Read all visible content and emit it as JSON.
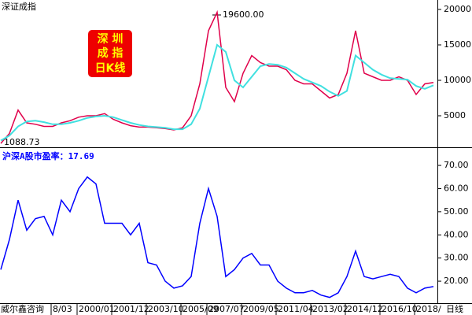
{
  "chart_data": [
    {
      "type": "line",
      "title": "深证成指",
      "annotations": [
        "19600.00",
        "1088.73"
      ],
      "badge": [
        "深 圳",
        "成 指",
        "日K线"
      ],
      "ylim": [
        556,
        21333
      ],
      "yticks": [
        5000,
        10000,
        15000,
        20000
      ],
      "series": [
        {
          "color": "#e0004a",
          "values": [
            1100,
            2500,
            5800,
            4000,
            3800,
            3500,
            3500,
            4000,
            4300,
            4800,
            5000,
            5000,
            5300,
            4500,
            4000,
            3600,
            3400,
            3400,
            3300,
            3200,
            3000,
            3300,
            5000,
            9500,
            17000,
            19600,
            9000,
            7000,
            11000,
            13500,
            12500,
            12000,
            12000,
            11500,
            10000,
            9500,
            9500,
            8500,
            7500,
            8000,
            11000,
            17000,
            11000,
            10500,
            10000,
            10000,
            10500,
            10000,
            8000,
            9500,
            9700
          ]
        },
        {
          "color": "#40e0e0",
          "values": [
            1500,
            2200,
            3500,
            4200,
            4300,
            4100,
            3800,
            3800,
            4000,
            4300,
            4700,
            4900,
            5000,
            4800,
            4400,
            4000,
            3700,
            3500,
            3400,
            3300,
            3100,
            3100,
            3800,
            6000,
            10500,
            15000,
            14000,
            10000,
            9000,
            10500,
            12000,
            12300,
            12200,
            11800,
            11000,
            10200,
            9700,
            9200,
            8400,
            7800,
            8500,
            13500,
            12500,
            11500,
            10800,
            10300,
            10200,
            10100,
            9200,
            8800,
            9300
          ]
        }
      ]
    },
    {
      "type": "line",
      "title": "沪深A股市盈率：17.69",
      "ylim": [
        10.5,
        77.5
      ],
      "yticks": [
        {
          "value": 20,
          "label": "20.00"
        },
        {
          "value": 30,
          "label": "30.00"
        },
        {
          "value": 40,
          "label": "40.00"
        },
        {
          "value": 50,
          "label": "50.00"
        },
        {
          "value": 60,
          "label": "60.00"
        },
        {
          "value": 70,
          "label": "70.00"
        }
      ],
      "categories": [
        null,
        null,
        null,
        null,
        null,
        null,
        "8/03",
        null,
        null,
        "2000/01",
        null,
        null,
        null,
        "2001/12",
        null,
        null,
        null,
        "2003/10",
        null,
        null,
        null,
        "2005/09",
        null,
        null,
        "2007/07",
        null,
        null,
        null,
        "2009/05",
        null,
        null,
        null,
        "2011/04",
        null,
        null,
        null,
        "2013/02",
        null,
        null,
        null,
        "2014/12",
        null,
        null,
        null,
        "2016/10",
        null,
        null,
        null,
        "2018/",
        null,
        null
      ],
      "series": [
        {
          "color": "#0000ff",
          "values": [
            25,
            38,
            55,
            42,
            47,
            48,
            40,
            55,
            50,
            60,
            65,
            62,
            45,
            45,
            45,
            40,
            45,
            28,
            27,
            20,
            17,
            18,
            22,
            45,
            60,
            48,
            22,
            25,
            30,
            32,
            27,
            27,
            20,
            17,
            15,
            15,
            16,
            14,
            13,
            15,
            22,
            33,
            22,
            21,
            22,
            23,
            22,
            17,
            15,
            17,
            17.69
          ]
        }
      ]
    }
  ],
  "footer": {
    "source": "威尔鑫咨询",
    "period": "日线"
  }
}
